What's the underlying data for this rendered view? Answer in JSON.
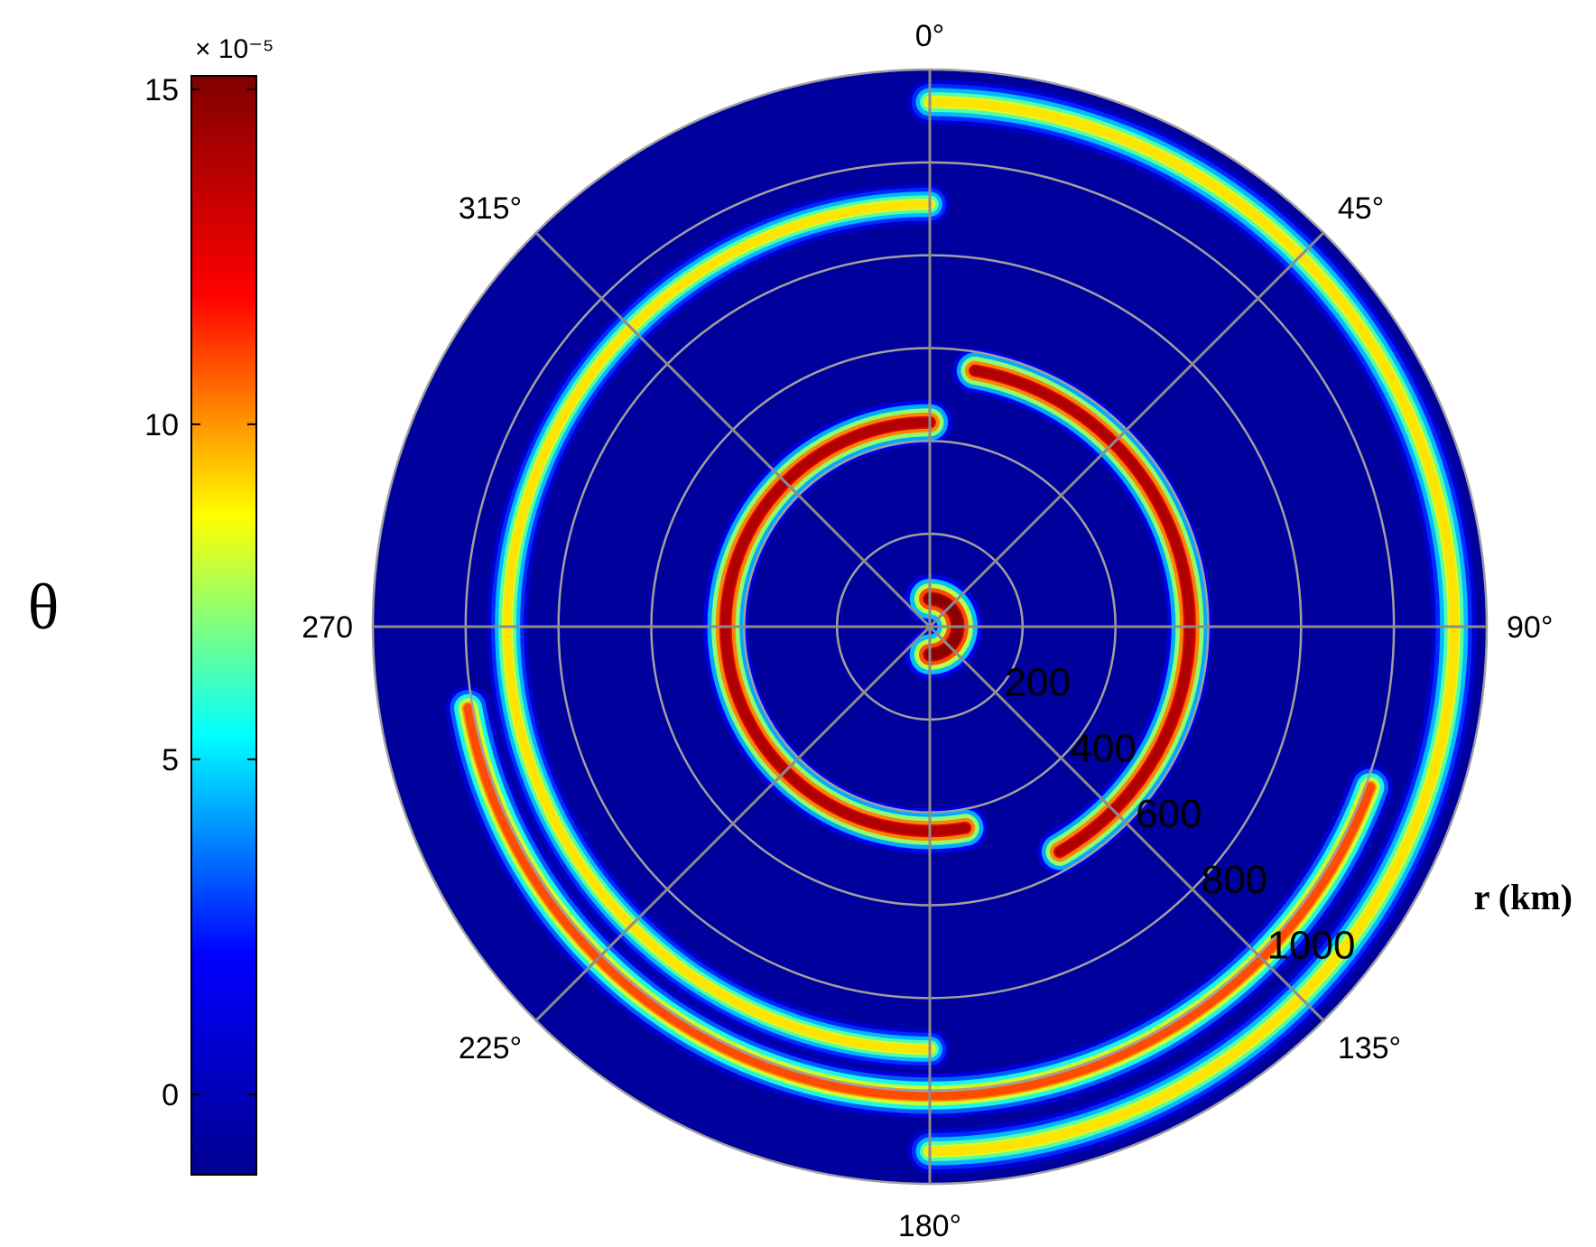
{
  "chart_data": {
    "type": "heatmap",
    "projection": "polar",
    "title": "",
    "colorbar": {
      "label": "θ",
      "exponent_label": "× 10⁻⁵",
      "ticks": [
        {
          "value": 15,
          "label": "15"
        },
        {
          "value": 10,
          "label": "10"
        },
        {
          "value": 5,
          "label": "5"
        },
        {
          "value": 0,
          "label": "0"
        }
      ],
      "range": [
        -1.2,
        15.2
      ],
      "colormap": "jet",
      "colormap_stops": [
        "#00008f",
        "#0000ff",
        "#00ffff",
        "#ffff00",
        "#ff0000",
        "#800000"
      ]
    },
    "angular_axis": {
      "direction": "clockwise",
      "zero_at": "top",
      "ticks": [
        {
          "angle": 0,
          "label": "0°"
        },
        {
          "angle": 45,
          "label": "45°"
        },
        {
          "angle": 90,
          "label": "90°"
        },
        {
          "angle": 135,
          "label": "135°"
        },
        {
          "angle": 180,
          "label": "180°"
        },
        {
          "angle": 225,
          "label": "225°"
        },
        {
          "angle": 270,
          "label": "270"
        },
        {
          "angle": 315,
          "label": "315°"
        }
      ]
    },
    "radial_axis": {
      "label": "r (km)",
      "range": [
        0,
        1200
      ],
      "label_angle": 135,
      "ticks": [
        {
          "value": 200,
          "label": "200"
        },
        {
          "value": 400,
          "label": "400"
        },
        {
          "value": 600,
          "label": "600"
        },
        {
          "value": 800,
          "label": "800"
        },
        {
          "value": 1000,
          "label": "1000"
        }
      ]
    },
    "grid": true,
    "field": {
      "background": -0.8,
      "rings": [
        {
          "name": "inner-blob-ne",
          "r_center": 60,
          "width": 55,
          "theta_start": 0,
          "theta_end": 180,
          "peak": 15
        },
        {
          "name": "inner-arc",
          "r_center": 440,
          "width": 50,
          "theta_start": 170,
          "theta_end": 360,
          "peak": 14
        },
        {
          "name": "middle-arc",
          "r_center": 560,
          "width": 50,
          "theta_start": 10,
          "theta_end": 150,
          "peak": 14
        },
        {
          "name": "outer-arc-east",
          "r_center": 1130,
          "width": 50,
          "theta_start": 0,
          "theta_end": 180,
          "peak": 9
        },
        {
          "name": "outer-arc-west",
          "r_center": 910,
          "width": 45,
          "theta_start": 180,
          "theta_end": 360,
          "peak": 9
        },
        {
          "name": "outer-arc-south",
          "r_center": 1010,
          "width": 50,
          "theta_start": 110,
          "theta_end": 260,
          "peak": 11
        }
      ]
    }
  }
}
